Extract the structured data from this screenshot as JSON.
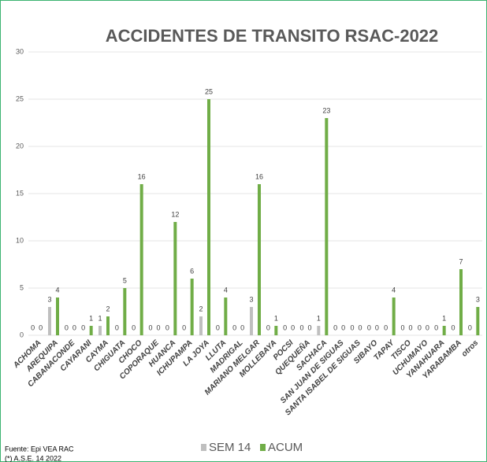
{
  "chart_data": {
    "type": "bar",
    "title": "ACCIDENTES DE TRANSITO RSAC-2022",
    "source": "Fuente:  Epi VEA RAC",
    "note": "(*) A.S.E. 14 2022",
    "categories": [
      "ACHOMA",
      "AREQUIPA",
      "CABANACONDE",
      "CAYARANI",
      "CAYMA",
      "CHIGUATA",
      "CHOCO",
      "COPORAQUE",
      "HUANCA",
      "ICHUPAMPA",
      "LA JOYA",
      "LLUTA",
      "MADRIGAL",
      "MARIANO MELGAR",
      "MOLLEBAYA",
      "POCSI",
      "QUEQUEÑA",
      "SACHACA",
      "SAN JUAN DE SIGUAS",
      "SANTA ISABEL DE SIGUAS",
      "SIBAYO",
      "TAPAY",
      "TISCO",
      "UCHUMAYO",
      "YANAHUARA",
      "YARABAMBA",
      "otros"
    ],
    "series": [
      {
        "name": "SEM 14",
        "color": "#bfbfbf",
        "values": [
          0,
          3,
          0,
          0,
          1,
          0,
          0,
          0,
          0,
          0,
          2,
          0,
          0,
          3,
          0,
          0,
          0,
          1,
          0,
          0,
          0,
          0,
          0,
          0,
          0,
          0,
          0
        ]
      },
      {
        "name": "ACUM",
        "color": "#70ad47",
        "values": [
          0,
          4,
          0,
          1,
          2,
          5,
          16,
          0,
          12,
          6,
          25,
          4,
          0,
          16,
          1,
          0,
          0,
          23,
          0,
          0,
          0,
          4,
          0,
          0,
          1,
          7,
          3
        ]
      }
    ],
    "ylim": [
      0,
      30
    ],
    "yticks": [
      0,
      5,
      10,
      15,
      20,
      25,
      30
    ],
    "grid": true,
    "legend": "bottom"
  }
}
